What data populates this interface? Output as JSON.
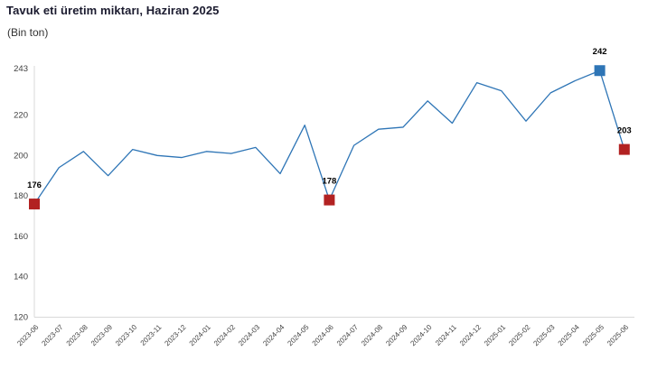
{
  "header": {
    "title": "Tavuk eti üretim miktarı, Haziran 2025",
    "subtitle": "(Bin ton)"
  },
  "chart_data": {
    "type": "line",
    "title": "Tavuk eti üretim miktarı, Haziran 2025",
    "subtitle": "(Bin ton)",
    "unit": "Bin ton",
    "x": [
      "2023-06",
      "2023-07",
      "2023-08",
      "2023-09",
      "2023-10",
      "2023-11",
      "2023-12",
      "2024-01",
      "2024-02",
      "2024-03",
      "2024-04",
      "2024-05",
      "2024-06",
      "2024-07",
      "2024-08",
      "2024-09",
      "2024-10",
      "2024-11",
      "2024-12",
      "2025-01",
      "2025-02",
      "2025-03",
      "2025-04",
      "2025-05",
      "2025-06"
    ],
    "values": [
      176,
      194,
      202,
      190,
      203,
      200,
      199,
      202,
      201,
      204,
      191,
      215,
      178,
      205,
      213,
      214,
      227,
      216,
      236,
      232,
      217,
      231,
      237,
      242,
      203
    ],
    "ylim": [
      120,
      243
    ],
    "y_ticks": [
      243,
      220,
      200,
      180,
      160,
      140,
      120
    ],
    "grid": false,
    "legend": false,
    "line_color": "#2e75b6",
    "axis_color": "#d9d9d9",
    "tick_color": "#404040",
    "label_color": "#000000",
    "annotated_points": [
      {
        "x": "2023-06",
        "value": 176,
        "marker": "square",
        "color": "#b22222"
      },
      {
        "x": "2024-06",
        "value": 178,
        "marker": "square",
        "color": "#b22222"
      },
      {
        "x": "2025-05",
        "value": 242,
        "marker": "square",
        "color": "#2e75b6"
      },
      {
        "x": "2025-06",
        "value": 203,
        "marker": "square",
        "color": "#b22222"
      }
    ]
  }
}
